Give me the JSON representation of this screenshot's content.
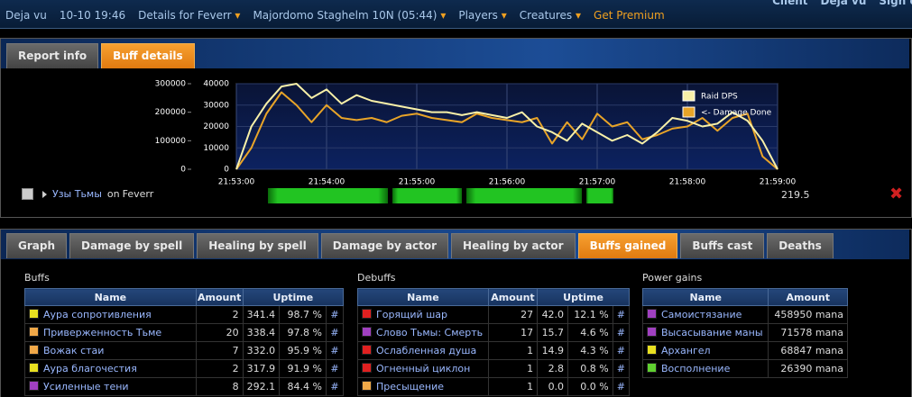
{
  "nav": {
    "items": [
      {
        "label": "Deja vu"
      },
      {
        "label": "10-10 19:46"
      },
      {
        "label": "Details for Feverr",
        "dropdown": true
      },
      {
        "label": "Majordomo Staghelm 10N (05:44)",
        "dropdown": true
      },
      {
        "label": "Players",
        "dropdown": true
      },
      {
        "label": "Creatures",
        "dropdown": true
      },
      {
        "label": "Get Premium",
        "highlight": true
      }
    ],
    "account": [
      "Client",
      "Deja vu",
      "Sign out"
    ]
  },
  "report_tabs": {
    "items": [
      "Report info",
      "Buff details"
    ],
    "active": 1
  },
  "chart_data": {
    "type": "line",
    "x": [
      0,
      10,
      20,
      30,
      40,
      50,
      60,
      70,
      80,
      90,
      100,
      110,
      120,
      130,
      140,
      150,
      160,
      170,
      180,
      190,
      200,
      210,
      220,
      230,
      240,
      250,
      260,
      270,
      280,
      290,
      300,
      310,
      320,
      330,
      340,
      350,
      360
    ],
    "xlim": [
      0,
      360
    ],
    "xticks": [
      {
        "value": 0,
        "label": "21:53:00"
      },
      {
        "value": 60,
        "label": "21:54:00"
      },
      {
        "value": 120,
        "label": "21:55:00"
      },
      {
        "value": 180,
        "label": "21:56:00"
      },
      {
        "value": 240,
        "label": "21:57:00"
      },
      {
        "value": 300,
        "label": "21:58:00"
      },
      {
        "value": 360,
        "label": "21:59:00"
      }
    ],
    "ylim": [
      0,
      300000
    ],
    "yticks": [
      0,
      100000,
      200000,
      300000
    ],
    "y2lim": [
      0,
      40000
    ],
    "y2ticks": [
      0,
      10000,
      20000,
      30000,
      40000
    ],
    "grid": true,
    "legend": "upper right",
    "series": [
      {
        "name": "Raid DPS",
        "color": "#f8f0a8",
        "axis": "y",
        "values": [
          0,
          150000,
          230000,
          290000,
          300000,
          250000,
          280000,
          230000,
          260000,
          240000,
          230000,
          220000,
          210000,
          200000,
          200000,
          190000,
          200000,
          190000,
          180000,
          200000,
          150000,
          130000,
          100000,
          160000,
          130000,
          100000,
          120000,
          90000,
          130000,
          180000,
          170000,
          150000,
          160000,
          200000,
          170000,
          100000,
          0
        ]
      },
      {
        "name": "<- Damage Done",
        "color": "#e8a428",
        "axis": "y2",
        "values": [
          0,
          10000,
          26000,
          36000,
          30000,
          22000,
          30000,
          24000,
          23000,
          24000,
          22000,
          25000,
          26000,
          24000,
          23000,
          22000,
          26000,
          24000,
          23000,
          22000,
          24000,
          12000,
          22000,
          14000,
          26000,
          20000,
          22000,
          14000,
          16000,
          19000,
          20000,
          24000,
          18000,
          24000,
          26000,
          6000,
          0
        ]
      }
    ]
  },
  "uptime_row": {
    "spell": "Узы Тьмы",
    "on": "on",
    "target": "Feverr",
    "value": "219.5"
  },
  "detail_tabs": {
    "items": [
      "Graph",
      "Damage by spell",
      "Healing by spell",
      "Damage by actor",
      "Healing by actor",
      "Buffs gained",
      "Buffs cast",
      "Deaths"
    ],
    "active": 5
  },
  "buffs": {
    "title": "Buffs",
    "columns": [
      "Name",
      "Amount",
      "Uptime"
    ],
    "rows": [
      {
        "color": "#e8e020",
        "cells": [
          "Аура сопротивления",
          "2",
          "341.4",
          "98.7 %",
          "#"
        ]
      },
      {
        "color": "#f0a848",
        "cells": [
          "Приверженность Тьме",
          "20",
          "338.4",
          "97.8 %",
          "#"
        ]
      },
      {
        "color": "#f0a848",
        "cells": [
          "Вожак стаи",
          "7",
          "332.0",
          "95.9 %",
          "#"
        ]
      },
      {
        "color": "#e8e020",
        "cells": [
          "Аура благочестия",
          "2",
          "317.9",
          "91.9 %",
          "#"
        ]
      },
      {
        "color": "#a040c0",
        "cells": [
          "Усиленные тени",
          "8",
          "292.1",
          "84.4 %",
          "#"
        ]
      }
    ]
  },
  "debuffs": {
    "title": "Debuffs",
    "columns": [
      "Name",
      "Amount",
      "Uptime"
    ],
    "rows": [
      {
        "color": "#e02020",
        "cells": [
          "Горящий шар",
          "27",
          "42.0",
          "12.1 %",
          "#"
        ]
      },
      {
        "color": "#a040c0",
        "cells": [
          "Слово Тьмы: Смерть",
          "17",
          "15.7",
          "4.6 %",
          "#"
        ]
      },
      {
        "color": "#e02020",
        "cells": [
          "Ослабленная душа",
          "1",
          "14.9",
          "4.3 %",
          "#"
        ]
      },
      {
        "color": "#e02020",
        "cells": [
          "Огненный циклон",
          "1",
          "2.8",
          "0.8 %",
          "#"
        ]
      },
      {
        "color": "#f0a848",
        "cells": [
          "Пресыщение",
          "1",
          "0.0",
          "0.0 %",
          "#"
        ]
      }
    ]
  },
  "power_gains": {
    "title": "Power gains",
    "columns": [
      "Name",
      "Amount"
    ],
    "rows": [
      {
        "color": "#a040c0",
        "cells": [
          "Самоистязание",
          "458950 mana"
        ]
      },
      {
        "color": "#a040c0",
        "cells": [
          "Высасывание маны",
          "71578 mana"
        ]
      },
      {
        "color": "#e8e020",
        "cells": [
          "Архангел",
          "68847 mana"
        ]
      },
      {
        "color": "#60d030",
        "cells": [
          "Восполнение",
          "26390 mana"
        ]
      }
    ]
  }
}
